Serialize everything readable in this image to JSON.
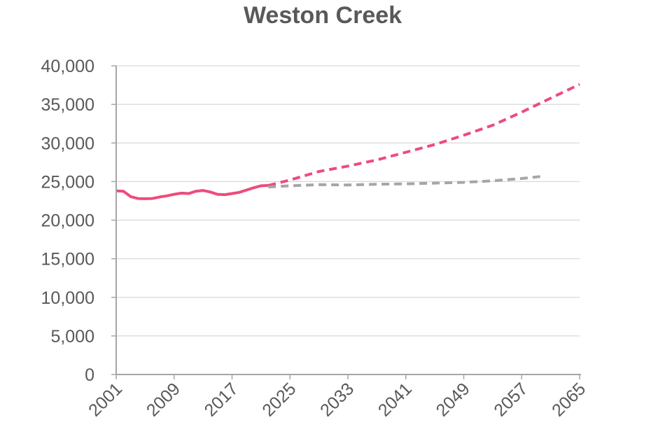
{
  "chart_data": {
    "type": "line",
    "title": "Weston Creek",
    "xlabel": "",
    "ylabel": "",
    "xlim": [
      2001,
      2065
    ],
    "ylim": [
      0,
      40000
    ],
    "grid": true,
    "legend": "none",
    "x_ticks": [
      2001,
      2009,
      2017,
      2025,
      2033,
      2041,
      2049,
      2057,
      2065
    ],
    "x_tick_labels": [
      "2001",
      "2009",
      "2017",
      "2025",
      "2033",
      "2041",
      "2049",
      "2057",
      "2065"
    ],
    "y_ticks": [
      0,
      5000,
      10000,
      15000,
      20000,
      25000,
      30000,
      35000,
      40000
    ],
    "y_tick_labels": [
      "0",
      "5,000",
      "10,000",
      "15,000",
      "20,000",
      "25,000",
      "30,000",
      "35,000",
      "40,000"
    ],
    "series": [
      {
        "style": "solid",
        "color": "#EE4B7C",
        "x": [
          2001,
          2002,
          2003,
          2004,
          2005,
          2006,
          2007,
          2008,
          2009,
          2010,
          2011,
          2012,
          2013,
          2014,
          2015,
          2016,
          2017,
          2018,
          2019,
          2020,
          2021,
          2022
        ],
        "y": [
          23800,
          23750,
          23050,
          22800,
          22780,
          22800,
          23000,
          23150,
          23350,
          23500,
          23450,
          23750,
          23850,
          23650,
          23350,
          23300,
          23450,
          23600,
          23900,
          24200,
          24450,
          24500
        ]
      },
      {
        "style": "dashed",
        "color": "#EE4B7C",
        "x": [
          2022,
          2025,
          2029,
          2033,
          2037,
          2041,
          2045,
          2049,
          2053,
          2057,
          2061,
          2065
        ],
        "y": [
          24500,
          25200,
          26300,
          27000,
          27800,
          28800,
          29800,
          31000,
          32300,
          34000,
          35800,
          37600
        ]
      },
      {
        "style": "dashed",
        "color": "#A6A6A6",
        "x": [
          2022,
          2025,
          2029,
          2033,
          2037,
          2041,
          2045,
          2049,
          2053,
          2057,
          2060
        ],
        "y": [
          24300,
          24450,
          24600,
          24550,
          24650,
          24700,
          24800,
          24900,
          25100,
          25400,
          25700
        ]
      }
    ]
  },
  "colors": {
    "axis": "#A6A6A6",
    "grid": "#D9D9D9",
    "text": "#595959"
  }
}
